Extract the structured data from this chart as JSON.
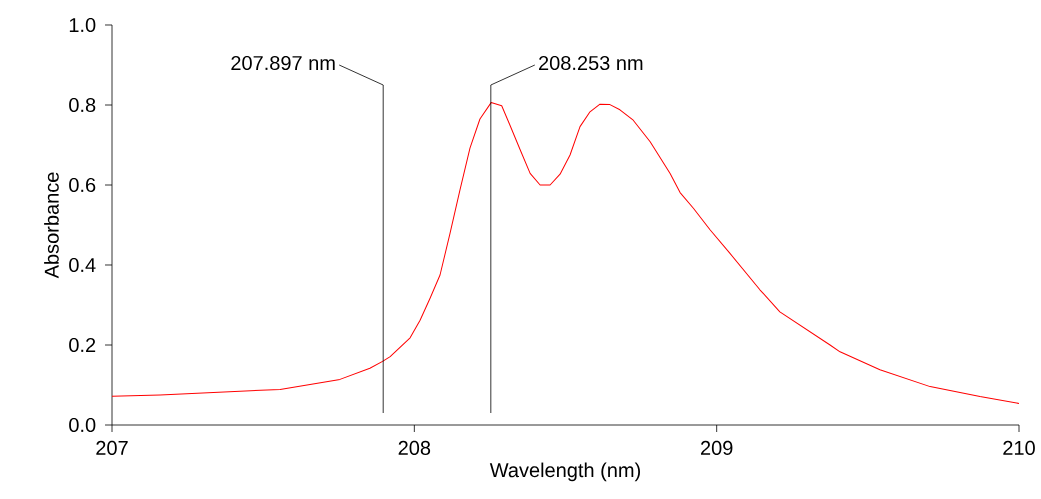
{
  "chart_data": {
    "type": "line",
    "xlabel": "Wavelength (nm)",
    "ylabel": "Absorbance",
    "x": [
      207.0,
      207.159,
      207.556,
      207.754,
      207.853,
      207.895,
      207.92,
      207.986,
      208.019,
      208.052,
      208.085,
      208.118,
      208.151,
      208.184,
      208.217,
      208.254,
      208.289,
      208.316,
      208.35,
      208.383,
      208.416,
      208.449,
      208.482,
      208.515,
      208.548,
      208.581,
      208.614,
      208.647,
      208.68,
      208.724,
      208.78,
      208.846,
      208.879,
      208.923,
      208.978,
      209.044,
      209.143,
      209.209,
      209.375,
      209.408,
      209.54,
      209.706,
      209.871,
      210.0
    ],
    "series": [
      {
        "color": "#ff0000",
        "values": [
          0.072,
          0.075,
          0.089,
          0.114,
          0.142,
          0.159,
          0.171,
          0.218,
          0.262,
          0.317,
          0.375,
          0.479,
          0.588,
          0.692,
          0.765,
          0.806,
          0.798,
          0.75,
          0.688,
          0.629,
          0.6,
          0.6,
          0.627,
          0.675,
          0.746,
          0.783,
          0.802,
          0.801,
          0.788,
          0.762,
          0.708,
          0.629,
          0.581,
          0.542,
          0.488,
          0.429,
          0.338,
          0.283,
          0.2,
          0.183,
          0.138,
          0.096,
          0.071,
          0.054
        ]
      }
    ],
    "xlim": [
      207,
      210
    ],
    "ylim": [
      0,
      1
    ],
    "xticks": [
      207,
      208,
      209,
      210
    ],
    "yticks": [
      {
        "value": 0,
        "label": "0.0"
      },
      {
        "value": 0.2,
        "label": "0.2"
      },
      {
        "value": 0.4,
        "label": "0.4"
      },
      {
        "value": 0.6,
        "label": "0.6"
      },
      {
        "value": 0.8,
        "label": "0.8"
      },
      {
        "value": 1,
        "label": "1.0"
      }
    ],
    "ref_lines": [
      {
        "axis": "x",
        "value": 207.897,
        "label": "207.897 nm",
        "color": "#000000"
      },
      {
        "axis": "x",
        "value": 208.253,
        "label": "208.253 nm",
        "color": "#000000"
      }
    ],
    "grid": false,
    "marker": "none",
    "line_style": "solid"
  }
}
